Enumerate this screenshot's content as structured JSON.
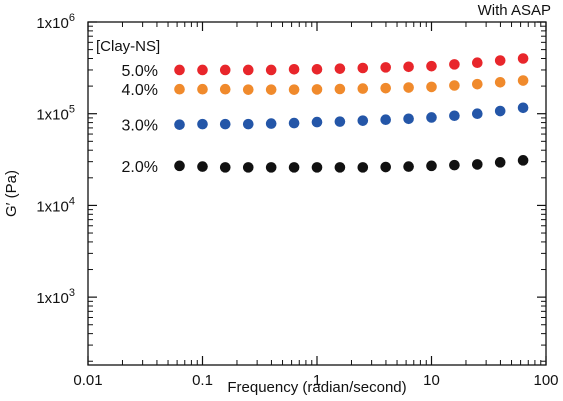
{
  "chart_data": {
    "type": "scatter",
    "title": "With ASAP",
    "legend_title": "[Clay-NS]",
    "xlabel": "Frequency (radian/second)",
    "ylabel": "G′ (Pa)",
    "x_scale": "log",
    "y_scale": "log",
    "xlim": [
      0.01,
      100
    ],
    "ylim": [
      100,
      1000000
    ],
    "x_ticks": [
      0.01,
      0.1,
      1,
      10,
      100
    ],
    "x_tick_labels": [
      "0.01",
      "0.1",
      "1",
      "10",
      "100"
    ],
    "y_ticks": [
      1000,
      10000,
      100000,
      1000000
    ],
    "y_tick_labels": [
      {
        "base": "1x10",
        "exp": "3"
      },
      {
        "base": "1x10",
        "exp": "4"
      },
      {
        "base": "1x10",
        "exp": "5"
      },
      {
        "base": "1x10",
        "exp": "6"
      }
    ],
    "grid": false,
    "legend_placement": "inline labels at left of each series",
    "x": [
      0.063,
      0.1,
      0.158,
      0.251,
      0.398,
      0.631,
      1.0,
      1.585,
      2.512,
      3.981,
      6.31,
      10.0,
      15.85,
      25.12,
      39.81,
      63.1
    ],
    "series": [
      {
        "name": "5.0%",
        "color": "#e8262b",
        "values": [
          300000,
          300000,
          300000,
          300000,
          300000,
          305000,
          305000,
          310000,
          315000,
          320000,
          325000,
          330000,
          345000,
          360000,
          380000,
          400000
        ]
      },
      {
        "name": "4.0%",
        "color": "#f08a2c",
        "values": [
          185000,
          185000,
          185000,
          183000,
          183000,
          183000,
          184000,
          186000,
          188000,
          190000,
          193000,
          196000,
          203000,
          210000,
          220000,
          230000
        ]
      },
      {
        "name": "3.0%",
        "color": "#2456a8",
        "values": [
          76000,
          77000,
          77000,
          77000,
          78000,
          79000,
          81000,
          82000,
          84000,
          86000,
          88000,
          91000,
          95000,
          100000,
          107000,
          116000
        ]
      },
      {
        "name": "2.0%",
        "color": "#111111",
        "values": [
          27000,
          26500,
          26000,
          26000,
          26000,
          26000,
          26000,
          26000,
          26000,
          26200,
          26500,
          27000,
          27500,
          28000,
          29500,
          31000
        ]
      }
    ]
  }
}
